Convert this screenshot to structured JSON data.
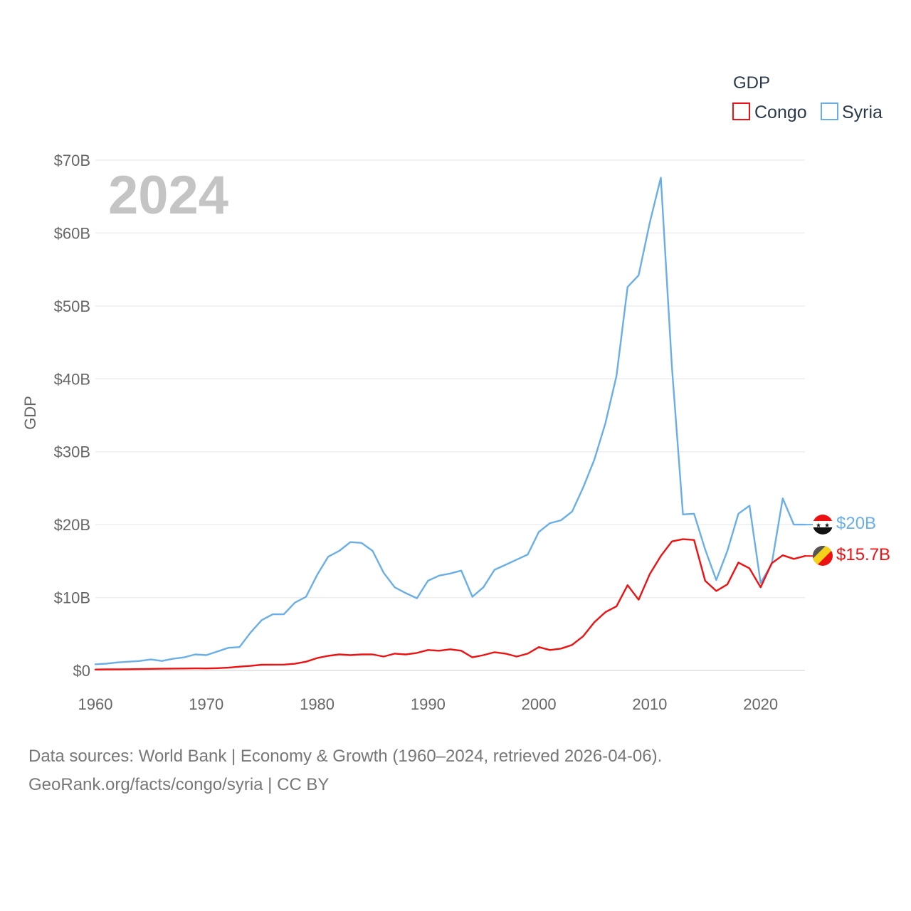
{
  "chart_data": {
    "type": "line",
    "title": "GDP",
    "xlabel": "",
    "ylabel": "GDP",
    "year_label": "2024",
    "xlim": [
      1960,
      2024
    ],
    "ylim": [
      0,
      70
    ],
    "y_unit": "billions USD",
    "y_ticks": [
      0,
      10,
      20,
      30,
      40,
      50,
      60,
      70
    ],
    "y_tick_labels": [
      "$0",
      "$10B",
      "$20B",
      "$30B",
      "$40B",
      "$50B",
      "$60B",
      "$70B"
    ],
    "x_ticks": [
      1960,
      1970,
      1980,
      1990,
      2000,
      2010,
      2020
    ],
    "x_tick_labels": [
      "1960",
      "1970",
      "1980",
      "1990",
      "2000",
      "2010",
      "2020"
    ],
    "grid": true,
    "legend": {
      "title": "GDP",
      "position": "top-right"
    },
    "x": [
      1960,
      1961,
      1962,
      1963,
      1964,
      1965,
      1966,
      1967,
      1968,
      1969,
      1970,
      1971,
      1972,
      1973,
      1974,
      1975,
      1976,
      1977,
      1978,
      1979,
      1980,
      1981,
      1982,
      1983,
      1984,
      1985,
      1986,
      1987,
      1988,
      1989,
      1990,
      1991,
      1992,
      1993,
      1994,
      1995,
      1996,
      1997,
      1998,
      1999,
      2000,
      2001,
      2002,
      2003,
      2004,
      2005,
      2006,
      2007,
      2008,
      2009,
      2010,
      2011,
      2012,
      2013,
      2014,
      2015,
      2016,
      2017,
      2018,
      2019,
      2020,
      2021,
      2022,
      2023,
      2024
    ],
    "series": [
      {
        "name": "Congo",
        "color": "#ee1111",
        "end_label": "$15.7B",
        "values": [
          0.13,
          0.15,
          0.16,
          0.17,
          0.19,
          0.21,
          0.23,
          0.25,
          0.26,
          0.28,
          0.27,
          0.31,
          0.38,
          0.52,
          0.62,
          0.78,
          0.79,
          0.8,
          0.92,
          1.2,
          1.7,
          2.0,
          2.2,
          2.1,
          2.2,
          2.2,
          1.9,
          2.3,
          2.2,
          2.4,
          2.8,
          2.7,
          2.9,
          2.7,
          1.8,
          2.1,
          2.5,
          2.3,
          1.9,
          2.3,
          3.2,
          2.8,
          3.0,
          3.5,
          4.7,
          6.6,
          8.0,
          8.8,
          11.7,
          9.7,
          13.2,
          15.7,
          17.7,
          18.0,
          17.9,
          12.3,
          10.9,
          11.8,
          14.8,
          14.0,
          11.4,
          14.7,
          15.8,
          15.3,
          15.7
        ]
      },
      {
        "name": "Syria",
        "color": "#6aaee8",
        "end_label": "$20B",
        "values": [
          0.85,
          0.93,
          1.1,
          1.2,
          1.3,
          1.5,
          1.3,
          1.6,
          1.8,
          2.2,
          2.1,
          2.6,
          3.1,
          3.2,
          5.2,
          6.9,
          7.7,
          7.7,
          9.3,
          10.1,
          13.1,
          15.6,
          16.4,
          17.6,
          17.5,
          16.4,
          13.4,
          11.4,
          10.6,
          9.9,
          12.3,
          13.0,
          13.3,
          13.7,
          10.1,
          11.4,
          13.8,
          14.5,
          15.2,
          15.9,
          19.0,
          20.2,
          20.6,
          21.8,
          25.1,
          28.9,
          33.9,
          40.4,
          52.6,
          54.2,
          61.4,
          67.6,
          41.6,
          21.4,
          21.5,
          16.6,
          12.4,
          16.4,
          21.5,
          22.6,
          12.0,
          14.6,
          23.6,
          20.0,
          20.0
        ]
      }
    ]
  },
  "source": {
    "line1": "Data sources: World Bank | Economy & Growth (1960–2024, retrieved 2026-04-06).",
    "line2": "GeoRank.org/facts/congo/syria | CC BY"
  }
}
